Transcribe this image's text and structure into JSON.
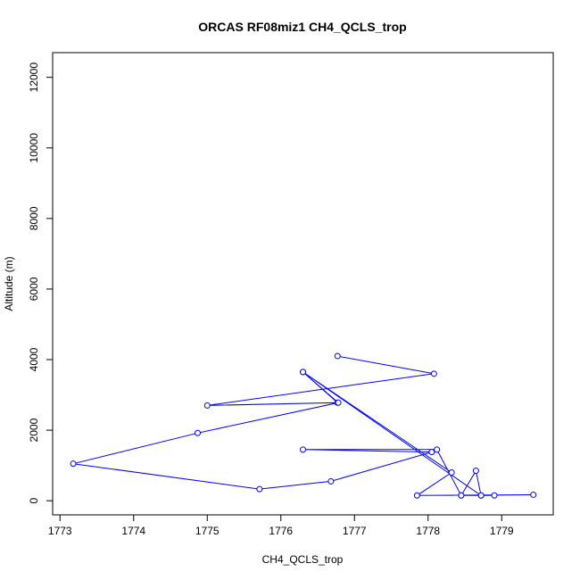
{
  "chart_data": {
    "type": "line",
    "title": "ORCAS RF08miz1 CH4_QCLS_trop",
    "xlabel": "CH4_QCLS_trop",
    "ylabel": "Altitude (m)",
    "xlim": [
      1772.9,
      1779.7
    ],
    "ylim": [
      -400,
      12700
    ],
    "xticks": [
      1773,
      1774,
      1775,
      1776,
      1777,
      1778,
      1779
    ],
    "yticks": [
      0,
      2000,
      4000,
      6000,
      8000,
      10000,
      12000
    ],
    "grid": false,
    "series": [
      {
        "color": "#0000ff",
        "marker": "open-circle",
        "x": [
          1776.77,
          1778.08,
          1775.0,
          1776.77,
          1776.3,
          1778.72,
          1778.9,
          1778.45,
          1778.12,
          1776.3,
          1778.05,
          1776.68,
          1775.71,
          1773.18,
          1774.87,
          1776.78,
          1776.3,
          1778.32,
          1777.85,
          1779.43,
          1778.45,
          1778.65,
          1778.72
        ],
        "y": [
          4100,
          3600,
          2700,
          2780,
          3650,
          150,
          150,
          150,
          1450,
          1450,
          1380,
          550,
          330,
          1050,
          1920,
          2780,
          3650,
          800,
          150,
          170,
          150,
          850,
          150
        ]
      }
    ]
  }
}
